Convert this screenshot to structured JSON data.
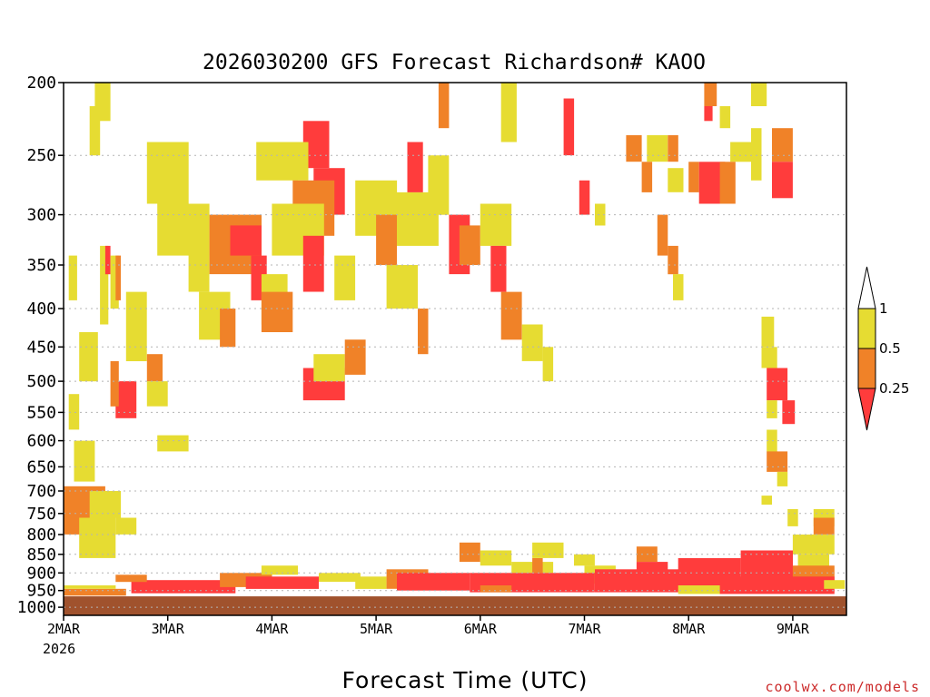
{
  "colors": {
    "band_lt_025": "#ff3c3c",
    "band_025_05": "#f08228",
    "band_05_1": "#e6dc32",
    "ground": "#a0522d",
    "grid": "#b4b4b4",
    "credit": "#cc2a2a"
  },
  "credit": "coolwx.com/models",
  "chart_data": {
    "type": "heatmap",
    "title": "2026030200 GFS Forecast Richardson# KAOO",
    "xlabel": "Forecast Time (UTC)",
    "ylabel": "",
    "x_ticks": [
      "2MAR",
      "3MAR",
      "4MAR",
      "5MAR",
      "6MAR",
      "7MAR",
      "8MAR",
      "9MAR"
    ],
    "x_year_label": "2026",
    "x_range_days": [
      0,
      7.5
    ],
    "y_ticks": [
      200,
      250,
      300,
      350,
      400,
      450,
      500,
      550,
      600,
      650,
      700,
      750,
      800,
      850,
      900,
      950,
      1000
    ],
    "y_range_hpa": [
      200,
      1025
    ],
    "y_scale": "log",
    "grid": true,
    "surface_pressure_hpa": 967,
    "legend": {
      "placement": "right",
      "labels": [
        "1",
        "0.5",
        "0.25"
      ],
      "bands": [
        {
          "range": "0.5-1",
          "color": "#e6dc32"
        },
        {
          "range": "0.25-0.5",
          "color": "#f08228"
        },
        {
          "range": "<0.25",
          "color": "#ff3c3c"
        }
      ]
    },
    "cells": [
      {
        "t": 0.3,
        "dt": 0.15,
        "p1": 200,
        "p2": 225,
        "c": "y"
      },
      {
        "t": 0.25,
        "dt": 0.1,
        "p1": 215,
        "p2": 250,
        "c": "y"
      },
      {
        "t": 0.05,
        "dt": 0.08,
        "p1": 340,
        "p2": 390,
        "c": "y"
      },
      {
        "t": 0.35,
        "dt": 0.08,
        "p1": 330,
        "p2": 420,
        "c": "y"
      },
      {
        "t": 0.4,
        "dt": 0.05,
        "p1": 330,
        "p2": 360,
        "c": "r"
      },
      {
        "t": 0.45,
        "dt": 0.08,
        "p1": 340,
        "p2": 400,
        "c": "y"
      },
      {
        "t": 0.5,
        "dt": 0.05,
        "p1": 340,
        "p2": 390,
        "c": "o"
      },
      {
        "t": 0.15,
        "dt": 0.18,
        "p1": 430,
        "p2": 500,
        "c": "y"
      },
      {
        "t": 0.05,
        "dt": 0.1,
        "p1": 520,
        "p2": 580,
        "c": "y"
      },
      {
        "t": 0.5,
        "dt": 0.2,
        "p1": 500,
        "p2": 560,
        "c": "r"
      },
      {
        "t": 0.45,
        "dt": 0.08,
        "p1": 470,
        "p2": 540,
        "c": "o"
      },
      {
        "t": 0.6,
        "dt": 0.2,
        "p1": 380,
        "p2": 470,
        "c": "y"
      },
      {
        "t": 0.8,
        "dt": 0.15,
        "p1": 460,
        "p2": 500,
        "c": "o"
      },
      {
        "t": 0.8,
        "dt": 0.2,
        "p1": 500,
        "p2": 540,
        "c": "y"
      },
      {
        "t": 0.9,
        "dt": 0.3,
        "p1": 590,
        "p2": 620,
        "c": "y"
      },
      {
        "t": 0.1,
        "dt": 0.2,
        "p1": 600,
        "p2": 680,
        "c": "y"
      },
      {
        "t": 0.0,
        "dt": 0.4,
        "p1": 690,
        "p2": 800,
        "c": "o"
      },
      {
        "t": 0.25,
        "dt": 0.3,
        "p1": 700,
        "p2": 760,
        "c": "y"
      },
      {
        "t": 0.15,
        "dt": 0.35,
        "p1": 760,
        "p2": 860,
        "c": "y"
      },
      {
        "t": 0.5,
        "dt": 0.2,
        "p1": 760,
        "p2": 800,
        "c": "y"
      },
      {
        "t": 0.8,
        "dt": 0.4,
        "p1": 240,
        "p2": 290,
        "c": "y"
      },
      {
        "t": 0.9,
        "dt": 0.5,
        "p1": 290,
        "p2": 340,
        "c": "y"
      },
      {
        "t": 1.2,
        "dt": 0.2,
        "p1": 300,
        "p2": 380,
        "c": "y"
      },
      {
        "t": 1.4,
        "dt": 0.5,
        "p1": 300,
        "p2": 360,
        "c": "o"
      },
      {
        "t": 1.6,
        "dt": 0.3,
        "p1": 310,
        "p2": 340,
        "c": "r"
      },
      {
        "t": 1.8,
        "dt": 0.15,
        "p1": 340,
        "p2": 390,
        "c": "r"
      },
      {
        "t": 1.9,
        "dt": 0.25,
        "p1": 360,
        "p2": 420,
        "c": "y"
      },
      {
        "t": 1.3,
        "dt": 0.3,
        "p1": 380,
        "p2": 440,
        "c": "y"
      },
      {
        "t": 1.5,
        "dt": 0.15,
        "p1": 400,
        "p2": 450,
        "c": "o"
      },
      {
        "t": 1.85,
        "dt": 0.4,
        "p1": 240,
        "p2": 270,
        "c": "y"
      },
      {
        "t": 2.3,
        "dt": 0.25,
        "p1": 225,
        "p2": 260,
        "c": "r"
      },
      {
        "t": 2.2,
        "dt": 0.15,
        "p1": 240,
        "p2": 270,
        "c": "y"
      },
      {
        "t": 2.4,
        "dt": 0.3,
        "p1": 260,
        "p2": 300,
        "c": "r"
      },
      {
        "t": 2.2,
        "dt": 0.4,
        "p1": 270,
        "p2": 320,
        "c": "o"
      },
      {
        "t": 2.0,
        "dt": 0.5,
        "p1": 290,
        "p2": 340,
        "c": "y"
      },
      {
        "t": 2.3,
        "dt": 0.2,
        "p1": 320,
        "p2": 380,
        "c": "r"
      },
      {
        "t": 2.6,
        "dt": 0.2,
        "p1": 340,
        "p2": 390,
        "c": "y"
      },
      {
        "t": 1.9,
        "dt": 0.3,
        "p1": 380,
        "p2": 430,
        "c": "o"
      },
      {
        "t": 2.3,
        "dt": 0.4,
        "p1": 480,
        "p2": 530,
        "c": "r"
      },
      {
        "t": 2.4,
        "dt": 0.3,
        "p1": 460,
        "p2": 500,
        "c": "y"
      },
      {
        "t": 2.7,
        "dt": 0.2,
        "p1": 440,
        "p2": 490,
        "c": "o"
      },
      {
        "t": 2.8,
        "dt": 0.4,
        "p1": 270,
        "p2": 320,
        "c": "y"
      },
      {
        "t": 3.0,
        "dt": 0.2,
        "p1": 300,
        "p2": 350,
        "c": "o"
      },
      {
        "t": 3.2,
        "dt": 0.4,
        "p1": 280,
        "p2": 330,
        "c": "y"
      },
      {
        "t": 3.3,
        "dt": 0.15,
        "p1": 240,
        "p2": 280,
        "c": "r"
      },
      {
        "t": 3.5,
        "dt": 0.2,
        "p1": 250,
        "p2": 300,
        "c": "y"
      },
      {
        "t": 3.7,
        "dt": 0.2,
        "p1": 300,
        "p2": 360,
        "c": "r"
      },
      {
        "t": 3.8,
        "dt": 0.2,
        "p1": 310,
        "p2": 350,
        "c": "o"
      },
      {
        "t": 3.1,
        "dt": 0.3,
        "p1": 350,
        "p2": 400,
        "c": "y"
      },
      {
        "t": 3.4,
        "dt": 0.1,
        "p1": 400,
        "p2": 460,
        "c": "o"
      },
      {
        "t": 4.0,
        "dt": 0.3,
        "p1": 290,
        "p2": 330,
        "c": "y"
      },
      {
        "t": 4.1,
        "dt": 0.15,
        "p1": 330,
        "p2": 380,
        "c": "r"
      },
      {
        "t": 4.2,
        "dt": 0.2,
        "p1": 380,
        "p2": 440,
        "c": "o"
      },
      {
        "t": 4.4,
        "dt": 0.2,
        "p1": 420,
        "p2": 470,
        "c": "y"
      },
      {
        "t": 4.6,
        "dt": 0.1,
        "p1": 450,
        "p2": 500,
        "c": "y"
      },
      {
        "t": 3.6,
        "dt": 0.1,
        "p1": 200,
        "p2": 230,
        "c": "o"
      },
      {
        "t": 4.2,
        "dt": 0.15,
        "p1": 200,
        "p2": 240,
        "c": "y"
      },
      {
        "t": 4.8,
        "dt": 0.1,
        "p1": 210,
        "p2": 250,
        "c": "r"
      },
      {
        "t": 4.95,
        "dt": 0.1,
        "p1": 270,
        "p2": 300,
        "c": "r"
      },
      {
        "t": 5.1,
        "dt": 0.1,
        "p1": 290,
        "p2": 310,
        "c": "y"
      },
      {
        "t": 5.4,
        "dt": 0.15,
        "p1": 235,
        "p2": 255,
        "c": "o"
      },
      {
        "t": 5.6,
        "dt": 0.2,
        "p1": 235,
        "p2": 255,
        "c": "y"
      },
      {
        "t": 5.8,
        "dt": 0.1,
        "p1": 235,
        "p2": 255,
        "c": "o"
      },
      {
        "t": 5.55,
        "dt": 0.1,
        "p1": 255,
        "p2": 280,
        "c": "o"
      },
      {
        "t": 5.8,
        "dt": 0.15,
        "p1": 260,
        "p2": 280,
        "c": "y"
      },
      {
        "t": 6.0,
        "dt": 0.1,
        "p1": 255,
        "p2": 280,
        "c": "o"
      },
      {
        "t": 6.1,
        "dt": 0.25,
        "p1": 255,
        "p2": 290,
        "c": "r"
      },
      {
        "t": 6.15,
        "dt": 0.12,
        "p1": 200,
        "p2": 215,
        "c": "o"
      },
      {
        "t": 6.15,
        "dt": 0.08,
        "p1": 215,
        "p2": 225,
        "c": "r"
      },
      {
        "t": 6.3,
        "dt": 0.1,
        "p1": 215,
        "p2": 230,
        "c": "y"
      },
      {
        "t": 6.6,
        "dt": 0.15,
        "p1": 200,
        "p2": 215,
        "c": "y"
      },
      {
        "t": 6.4,
        "dt": 0.2,
        "p1": 240,
        "p2": 255,
        "c": "y"
      },
      {
        "t": 6.3,
        "dt": 0.15,
        "p1": 255,
        "p2": 290,
        "c": "o"
      },
      {
        "t": 6.8,
        "dt": 0.2,
        "p1": 230,
        "p2": 255,
        "c": "o"
      },
      {
        "t": 6.8,
        "dt": 0.2,
        "p1": 255,
        "p2": 285,
        "c": "r"
      },
      {
        "t": 6.6,
        "dt": 0.1,
        "p1": 230,
        "p2": 270,
        "c": "y"
      },
      {
        "t": 5.7,
        "dt": 0.1,
        "p1": 300,
        "p2": 340,
        "c": "o"
      },
      {
        "t": 5.8,
        "dt": 0.1,
        "p1": 330,
        "p2": 360,
        "c": "o"
      },
      {
        "t": 5.85,
        "dt": 0.1,
        "p1": 360,
        "p2": 390,
        "c": "y"
      },
      {
        "t": 6.7,
        "dt": 0.12,
        "p1": 410,
        "p2": 450,
        "c": "y"
      },
      {
        "t": 6.7,
        "dt": 0.15,
        "p1": 450,
        "p2": 480,
        "c": "y"
      },
      {
        "t": 6.75,
        "dt": 0.2,
        "p1": 480,
        "p2": 530,
        "c": "r"
      },
      {
        "t": 6.75,
        "dt": 0.1,
        "p1": 530,
        "p2": 560,
        "c": "y"
      },
      {
        "t": 6.9,
        "dt": 0.12,
        "p1": 530,
        "p2": 570,
        "c": "r"
      },
      {
        "t": 6.75,
        "dt": 0.1,
        "p1": 580,
        "p2": 620,
        "c": "y"
      },
      {
        "t": 6.75,
        "dt": 0.2,
        "p1": 620,
        "p2": 660,
        "c": "o"
      },
      {
        "t": 6.85,
        "dt": 0.1,
        "p1": 660,
        "p2": 690,
        "c": "y"
      },
      {
        "t": 6.7,
        "dt": 0.1,
        "p1": 710,
        "p2": 730,
        "c": "y"
      },
      {
        "t": 6.95,
        "dt": 0.1,
        "p1": 740,
        "p2": 780,
        "c": "y"
      },
      {
        "t": 7.2,
        "dt": 0.2,
        "p1": 740,
        "p2": 780,
        "c": "y"
      },
      {
        "t": 7.2,
        "dt": 0.2,
        "p1": 760,
        "p2": 800,
        "c": "o"
      },
      {
        "t": 7.0,
        "dt": 0.4,
        "p1": 800,
        "p2": 850,
        "c": "y"
      },
      {
        "t": 7.05,
        "dt": 0.3,
        "p1": 850,
        "p2": 900,
        "c": "y"
      },
      {
        "t": 5.5,
        "dt": 0.2,
        "p1": 830,
        "p2": 870,
        "c": "o"
      },
      {
        "t": 5.5,
        "dt": 0.3,
        "p1": 870,
        "p2": 930,
        "c": "r"
      },
      {
        "t": 5.9,
        "dt": 0.6,
        "p1": 860,
        "p2": 940,
        "c": "r"
      },
      {
        "t": 6.5,
        "dt": 0.5,
        "p1": 840,
        "p2": 930,
        "c": "r"
      },
      {
        "t": 7.0,
        "dt": 0.4,
        "p1": 880,
        "p2": 930,
        "c": "o"
      },
      {
        "t": 4.9,
        "dt": 0.2,
        "p1": 850,
        "p2": 880,
        "c": "y"
      },
      {
        "t": 5.0,
        "dt": 0.3,
        "p1": 880,
        "p2": 930,
        "c": "y"
      },
      {
        "t": 4.3,
        "dt": 0.4,
        "p1": 870,
        "p2": 900,
        "c": "y"
      },
      {
        "t": 4.5,
        "dt": 0.3,
        "p1": 820,
        "p2": 860,
        "c": "y"
      },
      {
        "t": 4.5,
        "dt": 0.1,
        "p1": 860,
        "p2": 900,
        "c": "o"
      },
      {
        "t": 3.8,
        "dt": 0.2,
        "p1": 820,
        "p2": 870,
        "c": "o"
      },
      {
        "t": 4.0,
        "dt": 0.3,
        "p1": 840,
        "p2": 880,
        "c": "y"
      },
      {
        "t": 0.65,
        "dt": 1.0,
        "p1": 920,
        "p2": 958,
        "c": "r"
      },
      {
        "t": 0.0,
        "dt": 0.6,
        "p1": 945,
        "p2": 965,
        "c": "o"
      },
      {
        "t": 0.0,
        "dt": 0.5,
        "p1": 935,
        "p2": 945,
        "c": "y"
      },
      {
        "t": 0.5,
        "dt": 0.3,
        "p1": 905,
        "p2": 925,
        "c": "o"
      },
      {
        "t": 1.5,
        "dt": 0.5,
        "p1": 900,
        "p2": 940,
        "c": "o"
      },
      {
        "t": 1.75,
        "dt": 0.7,
        "p1": 910,
        "p2": 945,
        "c": "r"
      },
      {
        "t": 1.9,
        "dt": 0.35,
        "p1": 880,
        "p2": 905,
        "c": "y"
      },
      {
        "t": 2.45,
        "dt": 0.4,
        "p1": 900,
        "p2": 925,
        "c": "y"
      },
      {
        "t": 2.8,
        "dt": 0.3,
        "p1": 910,
        "p2": 945,
        "c": "y"
      },
      {
        "t": 3.1,
        "dt": 0.4,
        "p1": 890,
        "p2": 945,
        "c": "o"
      },
      {
        "t": 3.2,
        "dt": 0.7,
        "p1": 900,
        "p2": 950,
        "c": "r"
      },
      {
        "t": 3.9,
        "dt": 1.2,
        "p1": 900,
        "p2": 955,
        "c": "r"
      },
      {
        "t": 5.1,
        "dt": 1.1,
        "p1": 890,
        "p2": 955,
        "c": "r"
      },
      {
        "t": 6.1,
        "dt": 1.3,
        "p1": 910,
        "p2": 960,
        "c": "r"
      },
      {
        "t": 4.0,
        "dt": 0.3,
        "p1": 935,
        "p2": 955,
        "c": "o"
      },
      {
        "t": 5.9,
        "dt": 0.4,
        "p1": 935,
        "p2": 960,
        "c": "y"
      },
      {
        "t": 7.3,
        "dt": 0.2,
        "p1": 920,
        "p2": 945,
        "c": "y"
      }
    ]
  }
}
